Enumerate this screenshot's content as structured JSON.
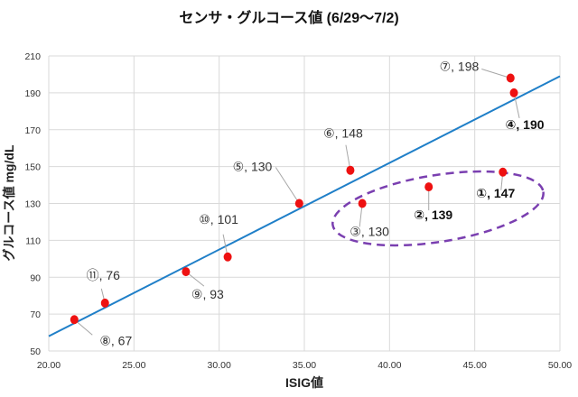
{
  "chart_data": {
    "type": "scatter",
    "title": "センサ・グルコース値 (6/29～7/2)",
    "xlabel": "ISIG値",
    "ylabel": "グルコース値 mg/dL",
    "xlim": [
      20,
      50
    ],
    "ylim": [
      50,
      210
    ],
    "xticks": [
      "20.00",
      "25.00",
      "30.00",
      "35.00",
      "40.00",
      "45.00",
      "50.00"
    ],
    "yticks": [
      "50",
      "70",
      "90",
      "110",
      "130",
      "150",
      "170",
      "190",
      "210"
    ],
    "grid": true,
    "legend": "none",
    "marker_color": "#ee1111",
    "trendline": {
      "type": "linear",
      "color": "#1f7fc8",
      "points": [
        [
          20,
          58
        ],
        [
          50,
          199
        ]
      ]
    },
    "highlight": {
      "shape": "dashed-ellipse",
      "color": "#7a3fb0",
      "points": [
        "①",
        "②",
        "③"
      ]
    },
    "points": [
      {
        "id": "①",
        "x": 46.65,
        "y": 147,
        "label": "①, 147",
        "bold": true
      },
      {
        "id": "②",
        "x": 42.3,
        "y": 139,
        "label": "②, 139",
        "bold": true
      },
      {
        "id": "③",
        "x": 38.4,
        "y": 130,
        "label": "③, 130",
        "bold": false
      },
      {
        "id": "④",
        "x": 47.3,
        "y": 190,
        "label": "④, 190",
        "bold": true
      },
      {
        "id": "⑤",
        "x": 34.7,
        "y": 130,
        "label": "⑤, 130",
        "bold": false
      },
      {
        "id": "⑥",
        "x": 37.7,
        "y": 148,
        "label": "⑥, 148",
        "bold": false
      },
      {
        "id": "⑦",
        "x": 47.1,
        "y": 198,
        "label": "⑦, 198",
        "bold": false
      },
      {
        "id": "⑧",
        "x": 21.5,
        "y": 67,
        "label": "⑧, 67",
        "bold": false
      },
      {
        "id": "⑨",
        "x": 28.05,
        "y": 93,
        "label": "⑨, 93",
        "bold": false
      },
      {
        "id": "⑩",
        "x": 30.5,
        "y": 101,
        "label": "⑩, 101",
        "bold": false
      },
      {
        "id": "⑪",
        "x": 23.3,
        "y": 76,
        "label": "⑪, 76",
        "bold": false
      }
    ]
  }
}
